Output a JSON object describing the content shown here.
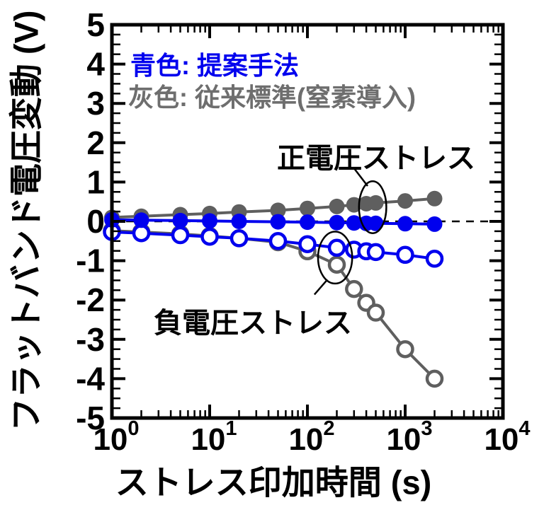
{
  "chart_data": {
    "type": "line",
    "x_scale": "log",
    "xlim": [
      1,
      10000
    ],
    "ylim": [
      -5,
      5
    ],
    "grid": false,
    "zero_line": "dashed",
    "xlabel": "ストレス印加時間 (s)",
    "ylabel": "フラットバンド電圧変動 (V)",
    "x_ticks": [
      "10^0",
      "10^1",
      "10^2",
      "10^3",
      "10^4"
    ],
    "y_ticks": [
      5,
      4,
      3,
      2,
      1,
      0,
      -1,
      -2,
      -3,
      -4,
      -5
    ],
    "x": [
      1,
      2,
      5,
      10,
      20,
      50,
      100,
      200,
      300,
      400,
      500,
      1000,
      2000
    ],
    "series": [
      {
        "name": "従来標準 負電圧ストレス",
        "color": "#5f5f5f",
        "marker": "open",
        "values": [
          -0.24,
          -0.27,
          -0.32,
          -0.37,
          -0.43,
          -0.53,
          -0.76,
          -1.1,
          -1.72,
          -2.07,
          -2.32,
          -3.25,
          -4.0
        ]
      },
      {
        "name": "従来標準 正電圧ストレス",
        "color": "#5f5f5f",
        "marker": "filled",
        "values": [
          0.1,
          0.13,
          0.17,
          0.2,
          0.24,
          0.28,
          0.33,
          0.38,
          0.42,
          0.45,
          0.47,
          0.52,
          0.58
        ]
      },
      {
        "name": "提案手法 負電圧ストレス",
        "color": "#0000ee",
        "marker": "open",
        "values": [
          -0.27,
          -0.3,
          -0.35,
          -0.39,
          -0.43,
          -0.5,
          -0.58,
          -0.67,
          -0.72,
          -0.76,
          -0.78,
          -0.85,
          -0.95
        ]
      },
      {
        "name": "提案手法 正電圧ストレス",
        "color": "#0000ee",
        "marker": "filled",
        "values": [
          0.04,
          0.03,
          0.02,
          0.01,
          0.0,
          -0.01,
          -0.02,
          -0.03,
          -0.04,
          -0.05,
          -0.05,
          -0.06,
          -0.07
        ]
      }
    ],
    "legend": [
      {
        "label": "青色: 提案手法",
        "color": "#0000ee"
      },
      {
        "label": "灰色: 従来標準(窒素導入)",
        "color": "#6e6e6e"
      }
    ],
    "annotations": [
      {
        "text": "正電圧ストレス",
        "ellipse": {
          "t": 465,
          "v": 0.36,
          "r_decades": 0.14,
          "r_volts": 0.66
        },
        "pointer": {
          "t1": 300,
          "v1": 1.35,
          "t2": 413,
          "v2": 0.9
        }
      },
      {
        "text": "負電圧ストレス",
        "ellipse": {
          "t": 192,
          "v": -0.92,
          "r_decades": 0.175,
          "r_volts": 0.66
        },
        "pointer": {
          "t1": 118,
          "v1": -1.86,
          "t2": 160,
          "v2": -1.48
        }
      }
    ],
    "colors": {
      "axis": "#000000",
      "background": "#ffffff"
    }
  }
}
